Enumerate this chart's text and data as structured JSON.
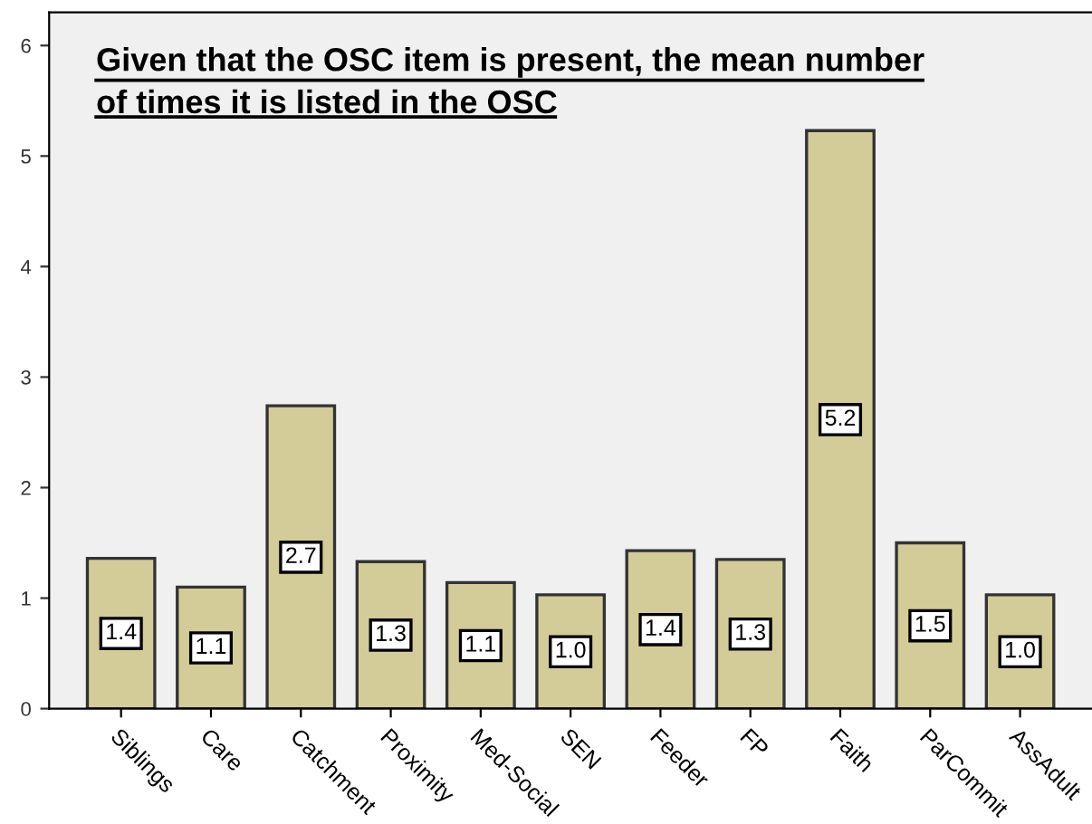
{
  "chart_data": {
    "type": "bar",
    "title": "Given that the OSC item is present, the mean number\nof times it is listed in the OSC",
    "categories": [
      "Siblings",
      "Care",
      "Catchment",
      "Proximity",
      "Med-Social",
      "SEN",
      "Feeder",
      "FP",
      "Faith",
      "ParCommit",
      "AssAdult"
    ],
    "values": [
      1.36,
      1.1,
      2.74,
      1.33,
      1.14,
      1.03,
      1.43,
      1.35,
      5.23,
      1.5,
      1.03
    ],
    "value_labels": [
      "1.4",
      "1.1",
      "2.7",
      "1.3",
      "1.1",
      "1.0",
      "1.4",
      "1.3",
      "5.2",
      "1.5",
      "1.0"
    ],
    "color": "#d3cc98",
    "ylim": [
      0,
      6.3
    ],
    "yticks": [
      0,
      1,
      2,
      3,
      4,
      5,
      6
    ],
    "grid": false
  }
}
